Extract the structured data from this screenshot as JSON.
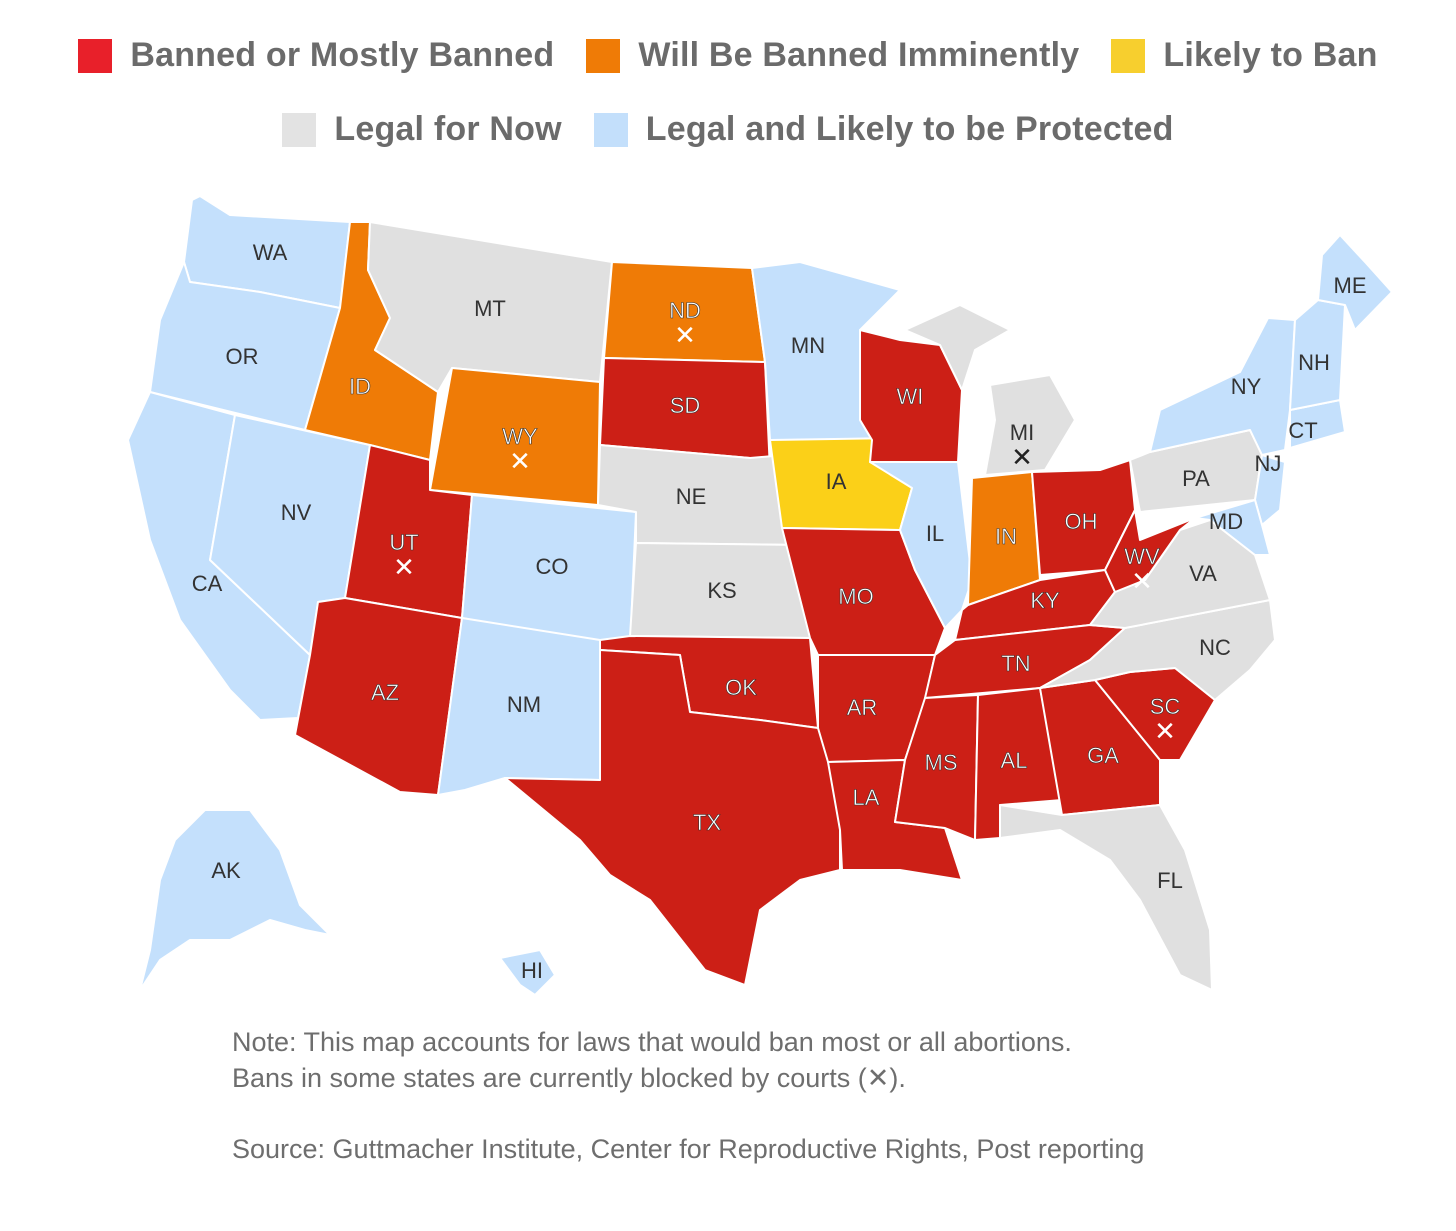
{
  "legend": [
    {
      "label": "Banned or Mostly Banned",
      "color": "#e8202a",
      "category": "banned"
    },
    {
      "label": "Will Be Banned Imminently",
      "color": "#ef7b06",
      "category": "imminent"
    },
    {
      "label": "Likely to Ban",
      "color": "#f7cf2e",
      "category": "likely"
    },
    {
      "label": "Legal for Now",
      "color": "#e3e3e3",
      "category": "legal"
    },
    {
      "label": "Legal and Likely to be Protected",
      "color": "#c3dffb",
      "category": "protected"
    }
  ],
  "fill_colors": {
    "banned": "#cc1f16",
    "imminent": "#ef7b06",
    "likely": "#fbd018",
    "legal": "#e0e0e0",
    "protected": "#c4e0fc"
  },
  "blocked_mark": "✕",
  "states": [
    {
      "code": "WA",
      "category": "protected",
      "blocked": false
    },
    {
      "code": "OR",
      "category": "protected",
      "blocked": false
    },
    {
      "code": "CA",
      "category": "protected",
      "blocked": false
    },
    {
      "code": "NV",
      "category": "protected",
      "blocked": false
    },
    {
      "code": "ID",
      "category": "imminent",
      "blocked": false
    },
    {
      "code": "MT",
      "category": "legal",
      "blocked": false
    },
    {
      "code": "WY",
      "category": "imminent",
      "blocked": true
    },
    {
      "code": "UT",
      "category": "banned",
      "blocked": true
    },
    {
      "code": "CO",
      "category": "protected",
      "blocked": false
    },
    {
      "code": "AZ",
      "category": "banned",
      "blocked": false
    },
    {
      "code": "NM",
      "category": "protected",
      "blocked": false
    },
    {
      "code": "ND",
      "category": "imminent",
      "blocked": true
    },
    {
      "code": "SD",
      "category": "banned",
      "blocked": false
    },
    {
      "code": "NE",
      "category": "legal",
      "blocked": false
    },
    {
      "code": "KS",
      "category": "legal",
      "blocked": false
    },
    {
      "code": "OK",
      "category": "banned",
      "blocked": false
    },
    {
      "code": "TX",
      "category": "banned",
      "blocked": false
    },
    {
      "code": "MN",
      "category": "protected",
      "blocked": false
    },
    {
      "code": "IA",
      "category": "likely",
      "blocked": false
    },
    {
      "code": "MO",
      "category": "banned",
      "blocked": false
    },
    {
      "code": "AR",
      "category": "banned",
      "blocked": false
    },
    {
      "code": "LA",
      "category": "banned",
      "blocked": false
    },
    {
      "code": "WI",
      "category": "banned",
      "blocked": false
    },
    {
      "code": "IL",
      "category": "protected",
      "blocked": false
    },
    {
      "code": "MI",
      "category": "legal",
      "blocked": true
    },
    {
      "code": "IN",
      "category": "imminent",
      "blocked": false
    },
    {
      "code": "OH",
      "category": "banned",
      "blocked": false
    },
    {
      "code": "KY",
      "category": "banned",
      "blocked": false
    },
    {
      "code": "TN",
      "category": "banned",
      "blocked": false
    },
    {
      "code": "MS",
      "category": "banned",
      "blocked": false
    },
    {
      "code": "AL",
      "category": "banned",
      "blocked": false
    },
    {
      "code": "GA",
      "category": "banned",
      "blocked": false
    },
    {
      "code": "FL",
      "category": "legal",
      "blocked": false
    },
    {
      "code": "SC",
      "category": "banned",
      "blocked": true
    },
    {
      "code": "NC",
      "category": "legal",
      "blocked": false
    },
    {
      "code": "VA",
      "category": "legal",
      "blocked": false
    },
    {
      "code": "WV",
      "category": "banned",
      "blocked": true
    },
    {
      "code": "PA",
      "category": "legal",
      "blocked": false
    },
    {
      "code": "NY",
      "category": "protected",
      "blocked": false
    },
    {
      "code": "NJ",
      "category": "protected",
      "blocked": false
    },
    {
      "code": "MD",
      "category": "protected",
      "blocked": false
    },
    {
      "code": "CT",
      "category": "protected",
      "blocked": false
    },
    {
      "code": "NH",
      "category": "protected",
      "blocked": false
    },
    {
      "code": "ME",
      "category": "protected",
      "blocked": false
    },
    {
      "code": "AK",
      "category": "protected",
      "blocked": false
    },
    {
      "code": "HI",
      "category": "protected",
      "blocked": false
    }
  ],
  "notes": {
    "line1": "Note: This map accounts for laws that would ban most or all abortions.",
    "line2_pre": "Bans in some states are currently blocked by courts (",
    "line2_post": ").",
    "source": "Source: Guttmacher Institute, Center for Reproductive Rights, Post reporting"
  }
}
